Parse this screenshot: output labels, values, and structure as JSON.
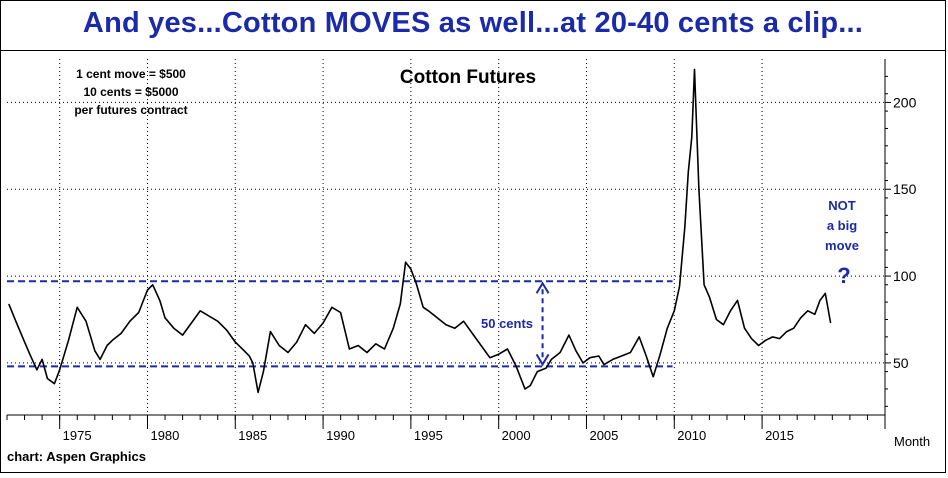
{
  "header": {
    "headline": "And yes...Cotton MOVES as well...at 20-40 cents a clip..."
  },
  "chart_data": {
    "type": "line",
    "title": "Cotton Futures",
    "xlabel": "Month",
    "ylabel": "",
    "x_tick_labels": [
      "1975",
      "1980",
      "1985",
      "1990",
      "1995",
      "2000",
      "2005",
      "2010",
      "2015"
    ],
    "y_ticks": [
      50,
      100,
      150,
      200
    ],
    "xlim": [
      1972.0,
      2022.0
    ],
    "ylim": [
      20,
      225
    ],
    "grid": true,
    "line_color": "#000000",
    "series": [
      {
        "x": [
          1972.1,
          1972.5,
          1973.0,
          1973.3,
          1973.7,
          1974.0,
          1974.3,
          1974.7,
          1975.0,
          1975.5,
          1976.0,
          1976.5,
          1977.0,
          1977.3,
          1977.7,
          1978.0,
          1978.5,
          1979.0,
          1979.5,
          1980.0,
          1980.3,
          1980.7,
          1981.0,
          1981.5,
          1982.0,
          1982.5,
          1983.0,
          1983.5,
          1984.0,
          1984.5,
          1985.0,
          1985.5,
          1985.8,
          1986.0,
          1986.3,
          1986.6,
          1987.0,
          1987.5,
          1988.0,
          1988.5,
          1989.0,
          1989.5,
          1990.0,
          1990.5,
          1991.0,
          1991.5,
          1992.0,
          1992.5,
          1993.0,
          1993.5,
          1994.0,
          1994.4,
          1994.7,
          1995.0,
          1995.3,
          1995.7,
          1996.0,
          1996.5,
          1997.0,
          1997.5,
          1998.0,
          1998.5,
          1999.0,
          1999.5,
          2000.0,
          2000.5,
          2001.0,
          2001.5,
          2001.8,
          2002.2,
          2002.7,
          2003.0,
          2003.5,
          2004.0,
          2004.4,
          2004.8,
          2005.2,
          2005.7,
          2006.0,
          2006.5,
          2007.0,
          2007.5,
          2008.0,
          2008.4,
          2008.8,
          2009.2,
          2009.6,
          2010.0,
          2010.3,
          2010.6,
          2010.8,
          2011.0,
          2011.15,
          2011.4,
          2011.7,
          2012.0,
          2012.4,
          2012.8,
          2013.2,
          2013.6,
          2014.0,
          2014.4,
          2014.8,
          2015.2,
          2015.6,
          2016.0,
          2016.4,
          2016.8,
          2017.2,
          2017.6,
          2018.0,
          2018.3,
          2018.6,
          2018.9
        ],
        "y": [
          84,
          74,
          62,
          55,
          46,
          52,
          41,
          38,
          46,
          63,
          82,
          74,
          57,
          52,
          60,
          63,
          67,
          74,
          79,
          92,
          95,
          86,
          76,
          70,
          66,
          73,
          80,
          77,
          74,
          69,
          62,
          57,
          54,
          50,
          33,
          45,
          68,
          60,
          56,
          62,
          72,
          67,
          73,
          82,
          79,
          58,
          60,
          56,
          61,
          58,
          70,
          84,
          108,
          104,
          96,
          82,
          80,
          76,
          72,
          70,
          74,
          67,
          60,
          53,
          55,
          58,
          48,
          35,
          37,
          45,
          47,
          52,
          56,
          66,
          57,
          50,
          53,
          54,
          49,
          52,
          54,
          56,
          65,
          54,
          42,
          55,
          70,
          80,
          94,
          128,
          160,
          180,
          219,
          150,
          95,
          88,
          75,
          72,
          80,
          86,
          70,
          64,
          60,
          63,
          65,
          64,
          68,
          70,
          76,
          80,
          78,
          86,
          90,
          73
        ]
      }
    ],
    "annotations": [
      "1 cent move = $500",
      "10 cents = $5000",
      "per futures contract",
      "50 cents",
      "NOT",
      "a big",
      "move",
      "?",
      "chart: Aspen Graphics"
    ],
    "reference_lines": [
      97,
      48
    ],
    "reference_color": "#1a2aa8"
  }
}
